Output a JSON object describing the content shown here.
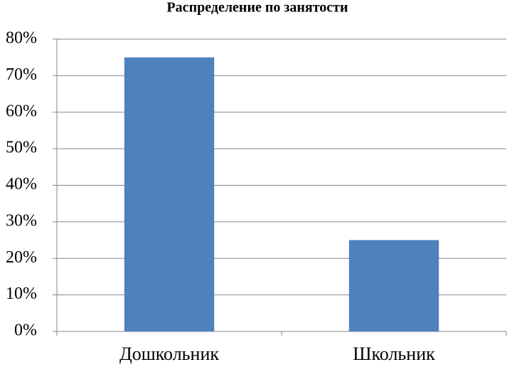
{
  "chart_data": {
    "type": "bar",
    "title": "Распределение по занятости",
    "categories": [
      "Дошкольник",
      "Школьник"
    ],
    "values": [
      75,
      25
    ],
    "color": "#4f81bd",
    "ylim": [
      0,
      80
    ],
    "yticks": [
      {
        "value": 0,
        "label": "0%"
      },
      {
        "value": 10,
        "label": "10%"
      },
      {
        "value": 20,
        "label": "20%"
      },
      {
        "value": 30,
        "label": "30%"
      },
      {
        "value": 40,
        "label": "40%"
      },
      {
        "value": 50,
        "label": "50%"
      },
      {
        "value": 60,
        "label": "60%"
      },
      {
        "value": 70,
        "label": "70%"
      },
      {
        "value": 80,
        "label": "80%"
      }
    ],
    "grid": true
  }
}
